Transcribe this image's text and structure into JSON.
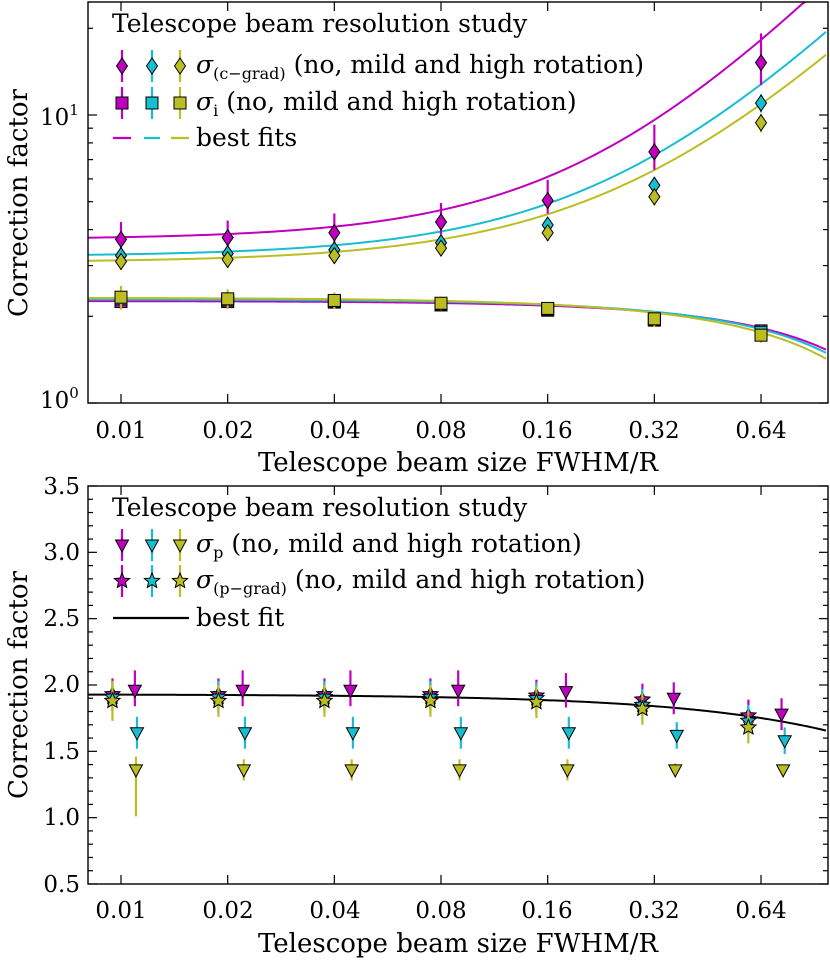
{
  "colors": {
    "magenta": "#bf00bf",
    "cyan": "#17becf",
    "olive": "#bcbd22",
    "black": "#000000"
  },
  "charts": [
    {
      "type": "scatter",
      "yscale": "log",
      "title": "Telescope beam resolution study",
      "xlabel": "Telescope beam size FWHM/R",
      "ylabel": "Correction factor",
      "x_tick_labels": [
        "0.01",
        "0.02",
        "0.04",
        "0.08",
        "0.16",
        "0.32",
        "0.64"
      ],
      "y_tick_labels": [
        {
          "base": "10",
          "exp": "0",
          "value": 1
        },
        {
          "base": "10",
          "exp": "1",
          "value": 10
        }
      ],
      "ylim": [
        1.0,
        25.0
      ],
      "legend": [
        {
          "marker": "diamond",
          "sym": "σ",
          "sub": "(c−grad)",
          "text": "(no,  mild and high rotation)"
        },
        {
          "marker": "square",
          "sym": "σ",
          "sub": "i",
          "text": "(no,  mild and high rotation)"
        },
        {
          "marker": "dashline",
          "sym": "",
          "sub": "",
          "text": "best fits"
        }
      ]
    },
    {
      "type": "scatter",
      "yscale": "linear",
      "title": "Telescope beam resolution study",
      "xlabel": "Telescope beam size FWHM/R",
      "ylabel": "Correction factor",
      "x_tick_labels": [
        "0.01",
        "0.02",
        "0.04",
        "0.08",
        "0.16",
        "0.32",
        "0.64"
      ],
      "y_tick_labels": [
        "0.5",
        "1.0",
        "1.5",
        "2.0",
        "2.5",
        "3.0",
        "3.5"
      ],
      "ylim": [
        0.5,
        3.5
      ],
      "legend": [
        {
          "marker": "triangle",
          "sym": "σ",
          "sub": "p",
          "text": "(no,  mild and high rotation)"
        },
        {
          "marker": "star",
          "sym": "σ",
          "sub": "(p−grad)",
          "text": "(no,  mild and high rotation)"
        },
        {
          "marker": "line",
          "sym": "",
          "sub": "",
          "text": "best fit"
        }
      ]
    }
  ],
  "chart_data": [
    {
      "type": "scatter",
      "title": "Telescope beam resolution study",
      "xlabel": "Telescope beam size FWHM/R",
      "ylabel": "Correction factor",
      "yscale": "log",
      "x": [
        0.01,
        0.02,
        0.04,
        0.08,
        0.16,
        0.32,
        0.64
      ],
      "ylim": [
        1.0,
        25.0
      ],
      "series": [
        {
          "name": "σ(c−grad) no rotation",
          "color": "magenta",
          "marker": "diamond",
          "values": [
            3.7,
            3.75,
            3.9,
            4.25,
            5.05,
            7.45,
            15.2
          ],
          "err_low": [
            0.35,
            0.35,
            0.35,
            0.4,
            0.5,
            1.0,
            2.5
          ],
          "err_high": [
            0.55,
            0.55,
            0.65,
            0.7,
            0.9,
            1.8,
            4.0
          ]
        },
        {
          "name": "σ(c−grad) mild rotation",
          "color": "cyan",
          "marker": "diamond",
          "values": [
            3.25,
            3.3,
            3.4,
            3.6,
            4.15,
            5.7,
            11.0
          ],
          "err_low": [
            0.2,
            0.2,
            0.2,
            0.2,
            0.25,
            0.4,
            0.8
          ],
          "err_high": [
            0.2,
            0.2,
            0.2,
            0.2,
            0.25,
            0.4,
            0.8
          ]
        },
        {
          "name": "σ(c−grad) high rotation",
          "color": "olive",
          "marker": "diamond",
          "values": [
            3.1,
            3.15,
            3.25,
            3.45,
            3.9,
            5.2,
            9.4
          ],
          "err_low": [
            0.2,
            0.2,
            0.2,
            0.2,
            0.25,
            0.35,
            0.7
          ],
          "err_high": [
            0.2,
            0.2,
            0.2,
            0.2,
            0.25,
            0.35,
            0.7
          ]
        },
        {
          "name": "σi no rotation",
          "color": "magenta",
          "marker": "square",
          "values": [
            2.25,
            2.25,
            2.24,
            2.19,
            2.1,
            1.94,
            1.78
          ],
          "err_low": [
            0.08,
            0.08,
            0.08,
            0.08,
            0.08,
            0.08,
            0.08
          ],
          "err_high": [
            0.08,
            0.08,
            0.08,
            0.08,
            0.08,
            0.08,
            0.08
          ]
        },
        {
          "name": "σi mild rotation",
          "color": "cyan",
          "marker": "square",
          "values": [
            2.3,
            2.28,
            2.26,
            2.21,
            2.12,
            1.95,
            1.76
          ],
          "err_low": [
            0.1,
            0.1,
            0.1,
            0.1,
            0.1,
            0.1,
            0.1
          ],
          "err_high": [
            0.1,
            0.1,
            0.1,
            0.1,
            0.1,
            0.1,
            0.1
          ]
        },
        {
          "name": "σi high rotation",
          "color": "olive",
          "marker": "square",
          "values": [
            2.33,
            2.3,
            2.27,
            2.22,
            2.13,
            1.96,
            1.72
          ],
          "err_low": [
            0.22,
            0.18,
            0.15,
            0.12,
            0.1,
            0.12,
            0.1
          ],
          "err_high": [
            0.22,
            0.18,
            0.15,
            0.12,
            0.1,
            0.12,
            0.1
          ]
        }
      ],
      "fits": [
        {
          "name": "best fit σ(c−grad) no rotation",
          "color": "magenta",
          "a": 3.7,
          "b": 26.0,
          "p": 1.3
        },
        {
          "name": "best fit σ(c−grad) mild rotation",
          "color": "cyan",
          "a": 3.23,
          "b": 16.7,
          "p": 1.25
        },
        {
          "name": "best fit σ(c−grad) high rotation",
          "color": "olive",
          "a": 3.08,
          "b": 13.5,
          "p": 1.22
        },
        {
          "name": "best fit σi no rotation",
          "color": "magenta",
          "a": 2.26,
          "b": -0.75,
          "p": 1.2
        },
        {
          "name": "best fit σi mild rotation",
          "color": "cyan",
          "a": 2.29,
          "b": -0.82,
          "p": 1.17
        },
        {
          "name": "best fit σi high rotation",
          "color": "olive",
          "a": 2.32,
          "b": -0.92,
          "p": 1.1
        }
      ]
    },
    {
      "type": "scatter",
      "title": "Telescope beam resolution study",
      "xlabel": "Telescope beam size FWHM/R",
      "ylabel": "Correction factor",
      "yscale": "linear",
      "x": [
        0.01,
        0.02,
        0.04,
        0.08,
        0.16,
        0.32,
        0.64
      ],
      "ylim": [
        0.5,
        3.5
      ],
      "series": [
        {
          "name": "σp no rotation",
          "color": "magenta",
          "marker": "triangle",
          "offset": 0.13,
          "values": [
            1.96,
            1.96,
            1.96,
            1.96,
            1.95,
            1.9,
            1.78
          ],
          "err_low": [
            0.12,
            0.12,
            0.12,
            0.12,
            0.12,
            0.12,
            0.12
          ],
          "err_high": [
            0.15,
            0.15,
            0.15,
            0.15,
            0.14,
            0.12,
            0.12
          ]
        },
        {
          "name": "σp mild rotation",
          "color": "cyan",
          "marker": "triangle",
          "offset": 0.15,
          "values": [
            1.64,
            1.64,
            1.64,
            1.64,
            1.64,
            1.62,
            1.58
          ],
          "err_low": [
            0.12,
            0.12,
            0.12,
            0.12,
            0.12,
            0.1,
            0.1
          ],
          "err_high": [
            0.12,
            0.12,
            0.12,
            0.12,
            0.12,
            0.1,
            0.1
          ]
        },
        {
          "name": "σp high rotation",
          "color": "olive",
          "marker": "triangle",
          "offset": 0.14,
          "values": [
            1.36,
            1.36,
            1.36,
            1.36,
            1.36,
            1.36,
            1.36
          ],
          "err_low": [
            0.35,
            0.08,
            0.08,
            0.08,
            0.08,
            0.05,
            0.03
          ],
          "err_high": [
            0.1,
            0.08,
            0.08,
            0.08,
            0.08,
            0.05,
            0.03
          ]
        },
        {
          "name": "σ(p−grad) no rotation",
          "color": "magenta",
          "marker": "star",
          "offset": -0.08,
          "values": [
            1.93,
            1.93,
            1.93,
            1.93,
            1.92,
            1.89,
            1.77
          ],
          "err_low": [
            0.12,
            0.12,
            0.12,
            0.12,
            0.12,
            0.12,
            0.12
          ],
          "err_high": [
            0.12,
            0.12,
            0.12,
            0.12,
            0.12,
            0.12,
            0.12
          ]
        },
        {
          "name": "σ(p−grad) mild rotation",
          "color": "cyan",
          "marker": "star",
          "offset": -0.08,
          "values": [
            1.91,
            1.91,
            1.91,
            1.91,
            1.9,
            1.85,
            1.73
          ],
          "err_low": [
            0.12,
            0.12,
            0.12,
            0.12,
            0.12,
            0.12,
            0.12
          ],
          "err_high": [
            0.12,
            0.12,
            0.12,
            0.12,
            0.12,
            0.12,
            0.12
          ]
        },
        {
          "name": "σ(p−grad) high rotation",
          "color": "olive",
          "marker": "star",
          "offset": -0.08,
          "values": [
            1.88,
            1.88,
            1.88,
            1.88,
            1.87,
            1.82,
            1.68
          ],
          "err_low": [
            0.15,
            0.12,
            0.12,
            0.12,
            0.12,
            0.12,
            0.12
          ],
          "err_high": [
            0.15,
            0.12,
            0.12,
            0.12,
            0.12,
            0.12,
            0.12
          ]
        }
      ],
      "fits": [
        {
          "name": "best fit",
          "color": "black",
          "a": 1.93,
          "b": -0.28,
          "p": 1.0
        }
      ]
    }
  ]
}
